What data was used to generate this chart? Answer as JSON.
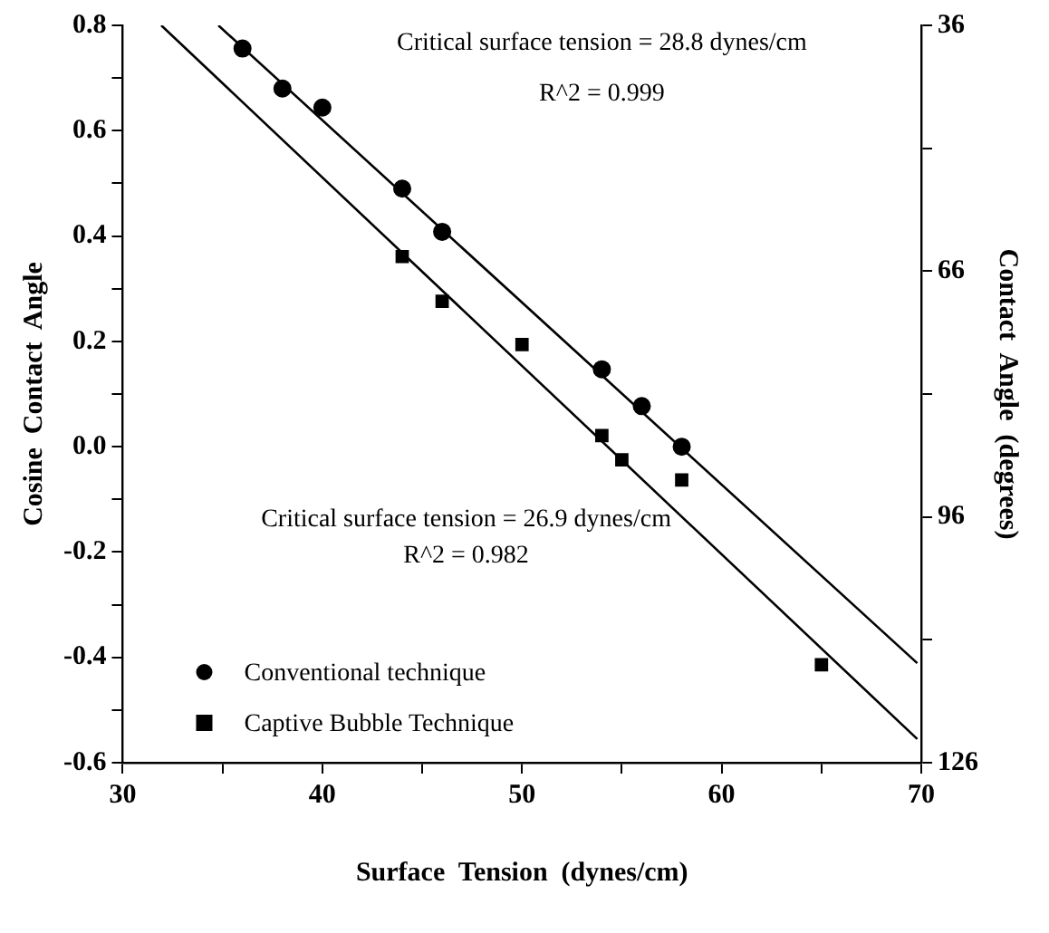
{
  "chart_data": {
    "type": "scatter",
    "xlabel": "Surface  Tension  (dynes/cm)",
    "ylabel": "Cosine  Contact  Angle",
    "y2label": "Contact  Angle  (degrees)",
    "annotations": [
      "Critical surface tension = 28.8 dynes/cm",
      "R^2 = 0.999",
      "Critical surface tension = 26.9 dynes/cm",
      "R^2 = 0.982"
    ],
    "series": [
      {
        "name": "Conventional technique",
        "color": "#000000",
        "marker": "circle",
        "x": [
          36,
          38,
          40,
          44,
          46,
          54,
          56,
          58
        ],
        "values": [
          0.756,
          0.68,
          0.644,
          0.49,
          0.408,
          0.147,
          0.077,
          0.0
        ]
      },
      {
        "name": "Captive Bubble Technique",
        "color": "#000000",
        "marker": "square",
        "x": [
          44,
          46,
          50,
          54,
          55,
          58,
          65
        ],
        "values": [
          0.361,
          0.276,
          0.194,
          0.021,
          -0.025,
          -0.063,
          -0.414
        ]
      },
      {
        "type": "line",
        "color": "#000000",
        "x": [
          34.79,
          69.8
        ],
        "values": [
          0.8,
          -0.411
        ]
      },
      {
        "type": "line",
        "color": "#000000",
        "x": [
          31.93,
          69.8
        ],
        "values": [
          0.8,
          -0.555
        ]
      }
    ],
    "xlim": [
      30,
      70
    ],
    "xticks": [
      30,
      {
        "value": 35,
        "label": null
      },
      40,
      {
        "value": 45,
        "label": null
      },
      50,
      {
        "value": 55,
        "label": null
      },
      60,
      {
        "value": 65,
        "label": null
      },
      70
    ],
    "ylim": [
      -0.6,
      0.8
    ],
    "yticks": [
      {
        "value": -0.6,
        "label": "-0.6"
      },
      {
        "value": -0.5,
        "label": null
      },
      {
        "value": -0.4,
        "label": "-0.4"
      },
      {
        "value": -0.3,
        "label": null
      },
      {
        "value": -0.2,
        "label": "-0.2"
      },
      {
        "value": -0.1,
        "label": null
      },
      {
        "value": 0,
        "label": "0.0"
      },
      {
        "value": 0.1,
        "label": null
      },
      {
        "value": 0.2,
        "label": "0.2"
      },
      {
        "value": 0.3,
        "label": null
      },
      {
        "value": 0.4,
        "label": "0.4"
      },
      {
        "value": 0.5,
        "label": null
      },
      {
        "value": 0.6,
        "label": "0.6"
      },
      {
        "value": 0.7,
        "label": null
      },
      {
        "value": 0.8,
        "label": "0.8"
      }
    ],
    "y2lim": [
      126,
      36
    ],
    "y2ticks": [
      126,
      {
        "value": 111,
        "label": null
      },
      96,
      {
        "value": 81,
        "label": null
      },
      66,
      {
        "value": 51,
        "label": null
      },
      36
    ],
    "grid": false,
    "legend": "bottom left"
  }
}
